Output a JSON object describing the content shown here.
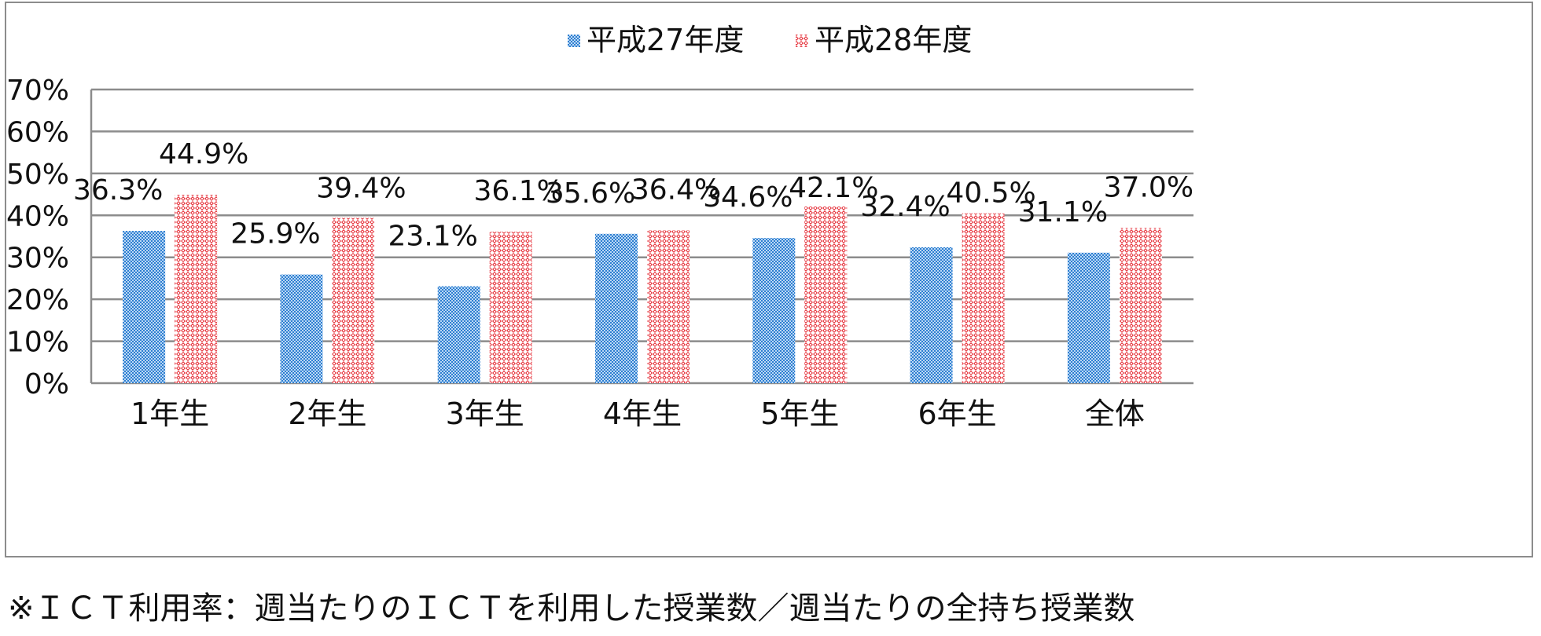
{
  "chart_data": {
    "type": "bar",
    "title": "",
    "xlabel": "",
    "ylabel": "",
    "categories": [
      "1年生",
      "2年生",
      "3年生",
      "4年生",
      "5年生",
      "6年生",
      "全体"
    ],
    "series": [
      {
        "name": "平成27年度",
        "values": [
          36.3,
          25.9,
          23.1,
          35.6,
          34.6,
          32.4,
          31.1
        ],
        "labels": [
          "36.3%",
          "25.9%",
          "23.1%",
          "35.6%",
          "34.6%",
          "32.4%",
          "31.1%"
        ],
        "color": "#2e7fd1",
        "pattern": "checker"
      },
      {
        "name": "平成28年度",
        "values": [
          44.9,
          39.4,
          36.1,
          36.4,
          42.1,
          40.5,
          37.0
        ],
        "labels": [
          "44.9%",
          "39.4%",
          "36.1%",
          "36.4%",
          "42.1%",
          "40.5%",
          "37.0%"
        ],
        "color": "#e8434b",
        "pattern": "diamond"
      }
    ],
    "ylim": [
      0,
      70
    ],
    "yticks": [
      "0%",
      "10%",
      "20%",
      "30%",
      "40%",
      "50%",
      "60%",
      "70%"
    ],
    "grid": true,
    "legend_position": "top-center"
  },
  "footnote": "※ＩＣＴ利用率：週当たりのＩＣＴを利用した授業数／週当たりの全持ち授業数"
}
